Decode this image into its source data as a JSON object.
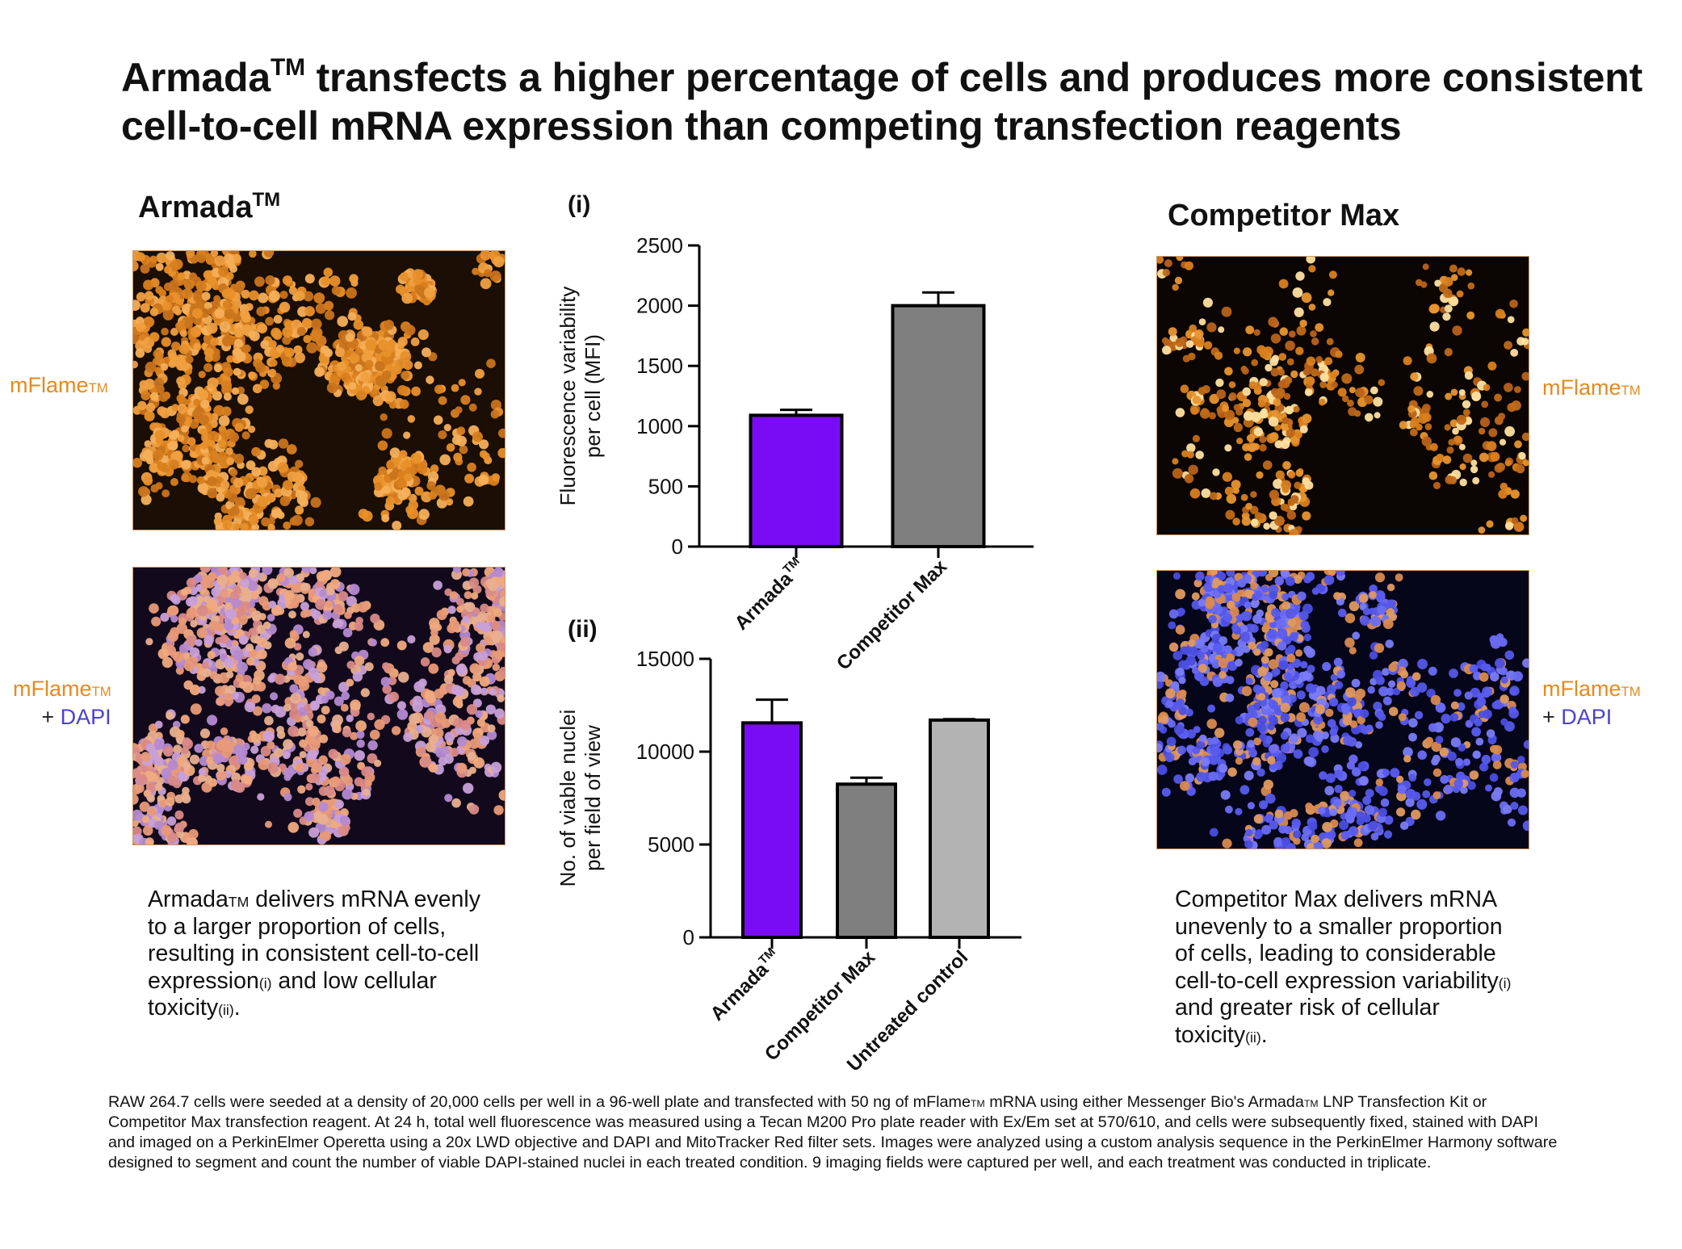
{
  "title": {
    "line1_pre": "Armada",
    "line1_sup": "TM",
    "line1_post": " transfects a higher percentage of cells and produces more consistent",
    "line2": "cell-to-cell mRNA expression than competing transfection reagents"
  },
  "left": {
    "heading": "Armada",
    "heading_sup": "TM",
    "label_top": "mFlame",
    "label_top_sup": "TM",
    "label_bottom_a": "mFlame",
    "label_bottom_a_sup": "TM",
    "label_bottom_b_prefix": "+ ",
    "label_bottom_b": "DAPI",
    "desc_l1_a": "Armada",
    "desc_l1_sup": "TM",
    "desc_l1_b": " delivers mRNA evenly",
    "desc_l2": "to a larger proportion of cells,",
    "desc_l3": "resulting in consistent cell-to-cell",
    "desc_l4_a": "expression",
    "desc_l4_sup": "(i)",
    "desc_l4_b": " and low cellular",
    "desc_l5_a": "toxicity",
    "desc_l5_sup": "(ii)",
    "desc_l5_b": "."
  },
  "right": {
    "heading": "Competitor Max",
    "label_top": "mFlame",
    "label_top_sup": "TM",
    "label_bottom_a": "mFlame",
    "label_bottom_a_sup": "TM",
    "label_bottom_b_prefix": "+ ",
    "label_bottom_b": "DAPI",
    "desc_l1": "Competitor Max delivers mRNA",
    "desc_l2": "unevenly to a smaller proportion",
    "desc_l3": "of cells, leading to considerable",
    "desc_l4_a": "cell-to-cell expression variability",
    "desc_l4_sup": "(i)",
    "desc_l5": "and greater risk of cellular",
    "desc_l6_a": "toxicity",
    "desc_l6_sup": "(ii)",
    "desc_l6_b": "."
  },
  "colors": {
    "armada": "#7a0cf5",
    "competitor": "#7f7f7f",
    "untreated": "#b3b3b3",
    "orange_label": "#e58a1f",
    "dapi_label": "#4a42d0"
  },
  "chart_data": [
    {
      "type": "bar",
      "panel": "(i)",
      "ylabel_line1": "Fluorescence variability",
      "ylabel_line2": "per cell (MFI)",
      "categories": [
        "Armada",
        "Competitor Max"
      ],
      "category_sup": [
        "TM",
        ""
      ],
      "values": [
        1090,
        2000
      ],
      "errors": [
        45,
        110
      ],
      "ylim": [
        0,
        2500
      ],
      "yticks": [
        "0",
        "500",
        "1000",
        "1500",
        "2000",
        "2500"
      ]
    },
    {
      "type": "bar",
      "panel": "(ii)",
      "ylabel_line1": "No. of viable nuclei",
      "ylabel_line2": "per field of view",
      "categories": [
        "Armada",
        "Competitor Max",
        "Untreated control"
      ],
      "category_sup": [
        "TM",
        "",
        ""
      ],
      "values": [
        11550,
        8250,
        11700
      ],
      "errors": [
        1250,
        350,
        50
      ],
      "ylim": [
        0,
        15000
      ],
      "yticks": [
        "0",
        "5000",
        "10000",
        "15000"
      ]
    }
  ],
  "footnote": {
    "l1_a": "RAW 264.7 cells were seeded at a density of 20,000 cells per well in a 96-well plate and transfected with 50 ng of mFlame",
    "l1_sup1": "TM",
    "l1_b": " mRNA using either Messenger Bio's Armada",
    "l1_sup2": "TM",
    "l1_c": " LNP Transfection Kit or",
    "l2": "Competitor Max transfection reagent. At 24 h, total well fluorescence was measured using a Tecan M200 Pro plate reader with Ex/Em set at 570/610, and cells were subsequently fixed, stained with DAPI",
    "l3": "and imaged on a PerkinElmer Operetta using a 20x LWD objective and DAPI and MitoTracker Red filter sets. Images were analyzed using a custom analysis sequence in the PerkinElmer Harmony software",
    "l4": "designed to segment and count the number of viable DAPI-stained nuclei in each treated condition. 9 imaging fields were captured per well, and each treatment was conducted in triplicate."
  }
}
